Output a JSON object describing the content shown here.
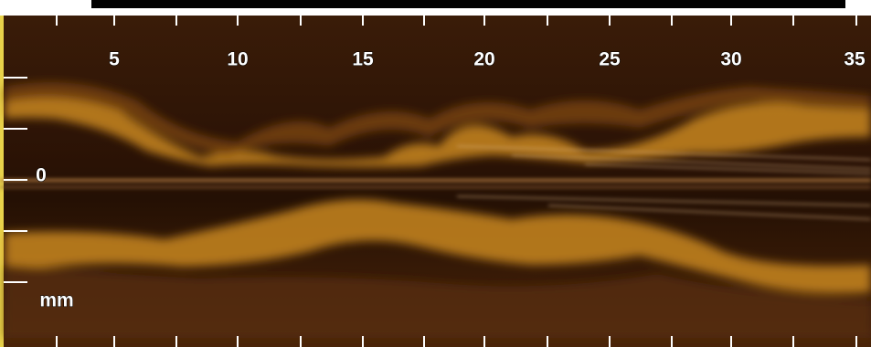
{
  "image": {
    "x_labels": [
      "5",
      "10",
      "15",
      "20",
      "25",
      "30",
      "35"
    ],
    "zero_label": "0",
    "unit_label": "mm"
  }
}
